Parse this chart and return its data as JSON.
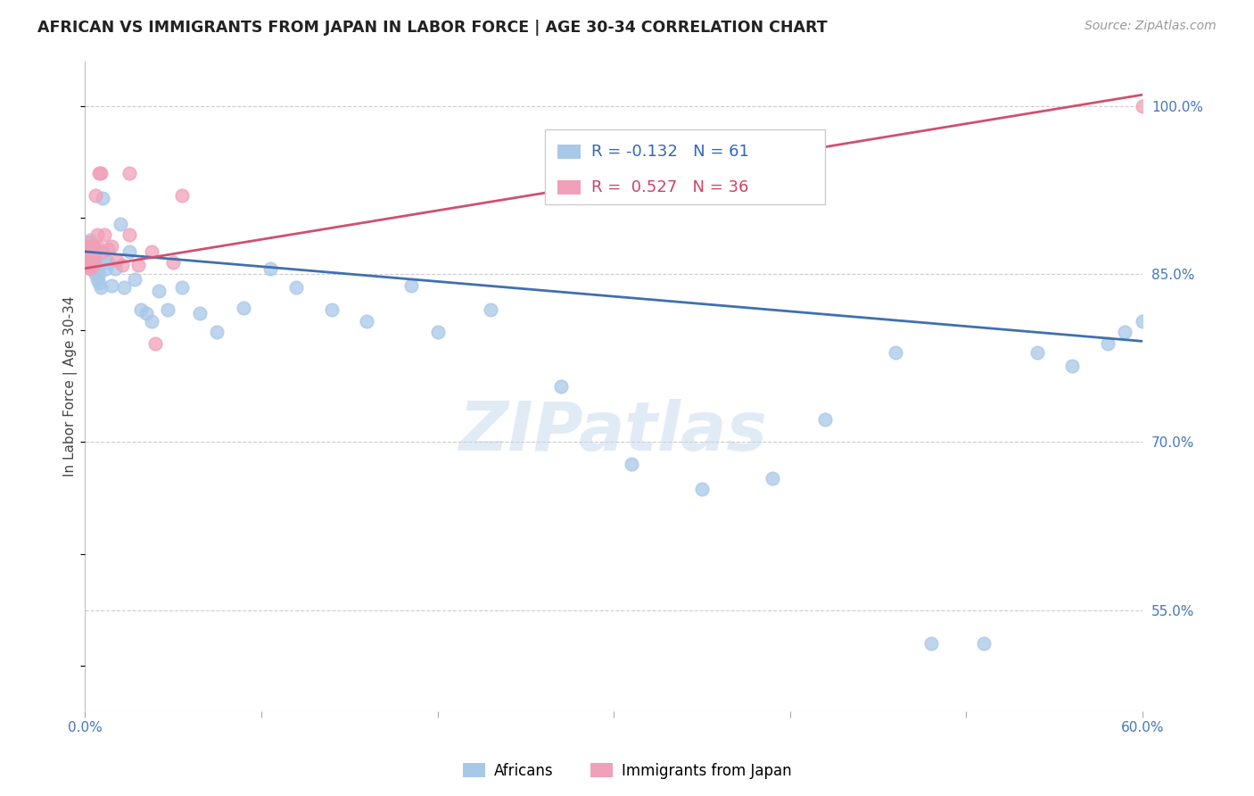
{
  "title": "AFRICAN VS IMMIGRANTS FROM JAPAN IN LABOR FORCE | AGE 30-34 CORRELATION CHART",
  "source": "Source: ZipAtlas.com",
  "ylabel": "In Labor Force | Age 30-34",
  "xlim": [
    0.0,
    0.6
  ],
  "ylim": [
    0.46,
    1.04
  ],
  "xticks": [
    0.0,
    0.1,
    0.2,
    0.3,
    0.4,
    0.5,
    0.6
  ],
  "xticklabels": [
    "0.0%",
    "",
    "",
    "",
    "",
    "",
    "60.0%"
  ],
  "yticks": [
    0.55,
    0.7,
    0.85,
    1.0
  ],
  "yticklabels": [
    "55.0%",
    "70.0%",
    "85.0%",
    "100.0%"
  ],
  "legend_label1": "Africans",
  "legend_label2": "Immigrants from Japan",
  "r1": -0.132,
  "n1": 61,
  "r2": 0.527,
  "n2": 36,
  "blue_color": "#a8c8e8",
  "pink_color": "#f0a0b8",
  "blue_line_color": "#4070b0",
  "pink_line_color": "#d05070",
  "watermark": "ZIPatlas",
  "africans_x": [
    0.001,
    0.001,
    0.002,
    0.002,
    0.003,
    0.003,
    0.003,
    0.004,
    0.004,
    0.004,
    0.005,
    0.005,
    0.005,
    0.006,
    0.006,
    0.006,
    0.007,
    0.007,
    0.008,
    0.008,
    0.009,
    0.01,
    0.011,
    0.012,
    0.013,
    0.015,
    0.017,
    0.02,
    0.022,
    0.025,
    0.028,
    0.032,
    0.035,
    0.038,
    0.042,
    0.047,
    0.055,
    0.065,
    0.075,
    0.09,
    0.105,
    0.12,
    0.14,
    0.16,
    0.185,
    0.2,
    0.23,
    0.27,
    0.31,
    0.35,
    0.39,
    0.42,
    0.46,
    0.48,
    0.51,
    0.54,
    0.56,
    0.58,
    0.59,
    0.6,
    0.605
  ],
  "africans_y": [
    0.87,
    0.865,
    0.875,
    0.868,
    0.872,
    0.86,
    0.88,
    0.865,
    0.855,
    0.87,
    0.86,
    0.865,
    0.875,
    0.858,
    0.85,
    0.862,
    0.845,
    0.855,
    0.85,
    0.842,
    0.838,
    0.918,
    0.865,
    0.855,
    0.86,
    0.84,
    0.855,
    0.895,
    0.838,
    0.87,
    0.845,
    0.818,
    0.815,
    0.808,
    0.835,
    0.818,
    0.838,
    0.815,
    0.798,
    0.82,
    0.855,
    0.838,
    0.818,
    0.808,
    0.84,
    0.798,
    0.818,
    0.75,
    0.68,
    0.658,
    0.668,
    0.72,
    0.78,
    0.52,
    0.52,
    0.78,
    0.768,
    0.788,
    0.798,
    0.808,
    0.798
  ],
  "japan_x": [
    0.001,
    0.001,
    0.002,
    0.002,
    0.002,
    0.003,
    0.003,
    0.003,
    0.003,
    0.004,
    0.004,
    0.004,
    0.005,
    0.005,
    0.005,
    0.006,
    0.006,
    0.007,
    0.007,
    0.008,
    0.009,
    0.01,
    0.011,
    0.013,
    0.015,
    0.018,
    0.021,
    0.025,
    0.03,
    0.038,
    0.04,
    0.05,
    0.055,
    0.025,
    0.6,
    0.605
  ],
  "japan_y": [
    0.87,
    0.862,
    0.878,
    0.87,
    0.858,
    0.875,
    0.865,
    0.855,
    0.872,
    0.868,
    0.862,
    0.858,
    0.875,
    0.862,
    0.858,
    0.87,
    0.92,
    0.875,
    0.885,
    0.94,
    0.94,
    0.87,
    0.885,
    0.872,
    0.875,
    0.862,
    0.858,
    0.885,
    0.858,
    0.87,
    0.788,
    0.86,
    0.92,
    0.94,
    1.0,
    1.0
  ],
  "blue_trend_x0": 0.0,
  "blue_trend_y0": 0.87,
  "blue_trend_x1": 0.6,
  "blue_trend_y1": 0.79,
  "pink_trend_x0": 0.0,
  "pink_trend_y0": 0.855,
  "pink_trend_x1": 0.6,
  "pink_trend_y1": 1.01
}
